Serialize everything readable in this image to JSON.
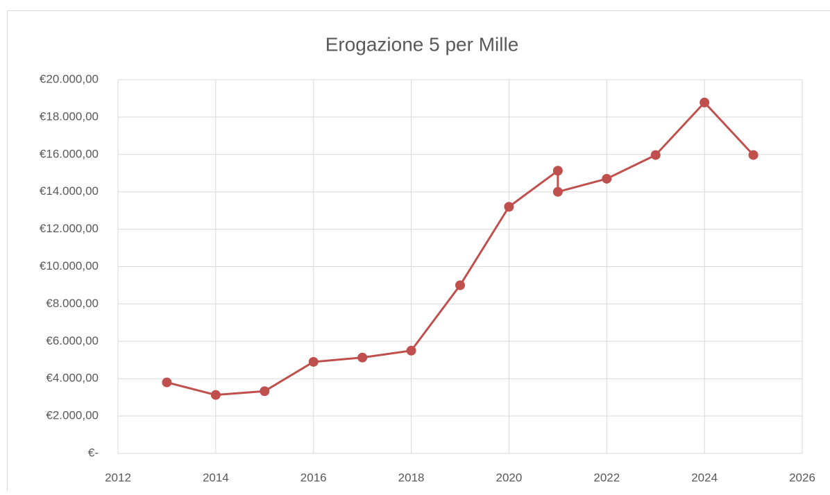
{
  "chart_data": {
    "type": "line",
    "title": "Erogazione 5 per Mille",
    "x": [
      2013,
      2014,
      2015,
      2016,
      2017,
      2018,
      2019,
      2020,
      2021,
      2021,
      2022,
      2023,
      2024,
      2025
    ],
    "series": [
      {
        "color": "#c0504d",
        "values": [
          3800,
          3130,
          3330,
          4900,
          5130,
          5500,
          9000,
          13200,
          15130,
          14000,
          14700,
          15970,
          18780,
          15970
        ]
      }
    ],
    "xlim": [
      2012,
      2026
    ],
    "xticks": [
      2012,
      2014,
      2016,
      2018,
      2020,
      2022,
      2024,
      2026
    ],
    "ylim": [
      0,
      20000
    ],
    "yticks": [
      {
        "value": 0,
        "label": "€-"
      },
      {
        "value": 2000,
        "label": "€2.000,00"
      },
      {
        "value": 4000,
        "label": "€4.000,00"
      },
      {
        "value": 6000,
        "label": "€6.000,00"
      },
      {
        "value": 8000,
        "label": "€8.000,00"
      },
      {
        "value": 10000,
        "label": "€10.000,00"
      },
      {
        "value": 12000,
        "label": "€12.000,00"
      },
      {
        "value": 14000,
        "label": "€14.000,00"
      },
      {
        "value": 16000,
        "label": "€16.000,00"
      },
      {
        "value": 18000,
        "label": "€18.000,00"
      },
      {
        "value": 20000,
        "label": "€20.000,00"
      }
    ],
    "grid": true
  }
}
